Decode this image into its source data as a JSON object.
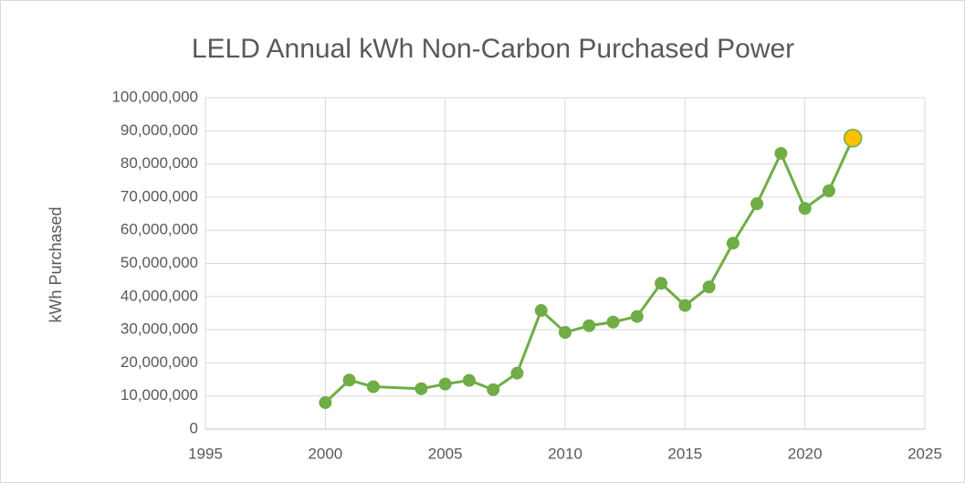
{
  "chart_data": {
    "type": "line",
    "title": "LELD Annual kWh Non-Carbon Purchased Power",
    "y_label": "kWh Purchased",
    "x": [
      2000,
      2001,
      2002,
      2004,
      2005,
      2006,
      2007,
      2008,
      2009,
      2010,
      2011,
      2012,
      2013,
      2014,
      2015,
      2016,
      2017,
      2018,
      2019,
      2020,
      2021,
      2022
    ],
    "series": [
      {
        "name": "kWh Purchased",
        "color": "#70ad47",
        "values": [
          8000000,
          14800000,
          12800000,
          12200000,
          13600000,
          14700000,
          11900000,
          16900000,
          35800000,
          29200000,
          31200000,
          32300000,
          34000000,
          44000000,
          37300000,
          42900000,
          56100000,
          68000000,
          83200000,
          66600000,
          71900000,
          87800000
        ],
        "point_colors": [
          "#70ad47",
          "#70ad47",
          "#70ad47",
          "#70ad47",
          "#70ad47",
          "#70ad47",
          "#70ad47",
          "#70ad47",
          "#70ad47",
          "#70ad47",
          "#70ad47",
          "#70ad47",
          "#70ad47",
          "#70ad47",
          "#70ad47",
          "#70ad47",
          "#70ad47",
          "#70ad47",
          "#70ad47",
          "#70ad47",
          "#70ad47",
          "#ffc000"
        ]
      }
    ],
    "xlim": [
      1995,
      2025
    ],
    "xticks": [
      1995,
      2000,
      2005,
      2010,
      2015,
      2020,
      2025
    ],
    "ylim": [
      0,
      100000000
    ],
    "yticks": [
      0,
      {
        "value": 10000000,
        "label": "10,000,000"
      },
      {
        "value": 20000000,
        "label": "20,000,000"
      },
      {
        "value": 30000000,
        "label": "30,000,000"
      },
      {
        "value": 40000000,
        "label": "40,000,000"
      },
      {
        "value": 50000000,
        "label": "50,000,000"
      },
      {
        "value": 60000000,
        "label": "60,000,000"
      },
      {
        "value": 70000000,
        "label": "70,000,000"
      },
      {
        "value": 80000000,
        "label": "80,000,000"
      },
      {
        "value": 90000000,
        "label": "90,000,000"
      },
      {
        "value": 100000000,
        "label": "100,000,000"
      }
    ],
    "grid": true
  }
}
